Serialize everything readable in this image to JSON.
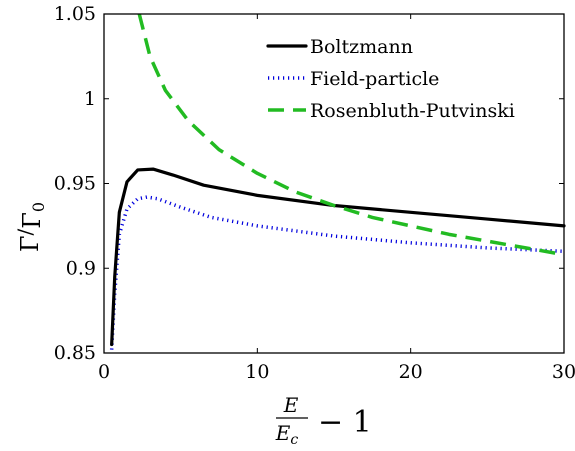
{
  "chart_data": {
    "type": "line",
    "title": "",
    "xlabel": {
      "frac_num": "E",
      "frac_den": "E",
      "frac_den_sub": "c",
      "suffix": "− 1"
    },
    "ylabel": {
      "main": "Γ",
      "slash": "/",
      "den": "Γ",
      "den_sub": "0"
    },
    "xlim": [
      0,
      30
    ],
    "ylim": [
      0.85,
      1.05
    ],
    "xticks": [
      0,
      10,
      20,
      30
    ],
    "xtick_labels": [
      "0",
      "10",
      "20",
      "30"
    ],
    "yticks": [
      0.85,
      0.9,
      0.95,
      1.0,
      1.05
    ],
    "ytick_labels": [
      "0.85",
      "0.9",
      "0.95",
      "1",
      "1.05"
    ],
    "grid": false,
    "legend_position": "top-right",
    "series": [
      {
        "name": "Boltzmann",
        "color": "#000000",
        "style": "solid",
        "x": [
          0.5,
          0.7,
          1.0,
          1.5,
          2.2,
          3.2,
          4.5,
          6.5,
          10.0,
          15.0,
          20.0,
          25.0,
          30.0
        ],
        "y": [
          0.855,
          0.895,
          0.933,
          0.951,
          0.958,
          0.9585,
          0.955,
          0.949,
          0.943,
          0.937,
          0.933,
          0.929,
          0.925
        ]
      },
      {
        "name": "Field-particle",
        "color": "#0000dd",
        "style": "dotted",
        "x": [
          0.5,
          0.7,
          1.0,
          1.5,
          2.2,
          2.8,
          3.5,
          5.0,
          7.0,
          10.0,
          15.0,
          20.0,
          25.0,
          30.0
        ],
        "y": [
          0.852,
          0.885,
          0.92,
          0.935,
          0.941,
          0.942,
          0.941,
          0.936,
          0.93,
          0.925,
          0.919,
          0.915,
          0.912,
          0.91
        ]
      },
      {
        "name": "Rosenbluth-Putvinski",
        "color": "#22bb22",
        "style": "dashed",
        "x": [
          2.3,
          3.0,
          4.0,
          5.5,
          7.5,
          10.0,
          12.5,
          15.0,
          17.5,
          20.0,
          22.5,
          25.0,
          27.5,
          30.0
        ],
        "y": [
          1.05,
          1.025,
          1.005,
          0.987,
          0.97,
          0.956,
          0.945,
          0.937,
          0.93,
          0.925,
          0.92,
          0.916,
          0.912,
          0.908
        ]
      }
    ]
  }
}
